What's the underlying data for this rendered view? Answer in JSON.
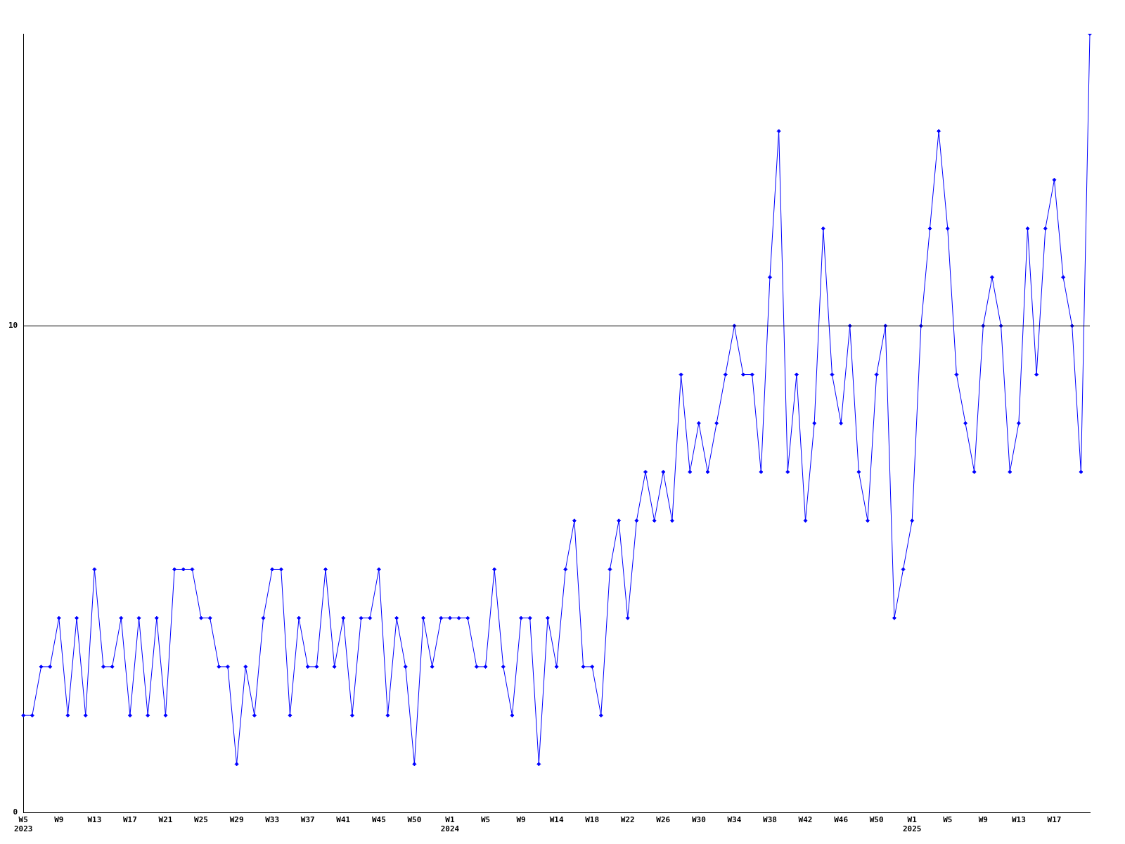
{
  "chart_data": {
    "type": "line",
    "categories": [
      "W5\n2023",
      null,
      null,
      null,
      "W9",
      null,
      null,
      null,
      "W13",
      null,
      null,
      null,
      "W17",
      null,
      null,
      null,
      "W21",
      null,
      null,
      null,
      "W25",
      null,
      null,
      null,
      "W29",
      null,
      null,
      null,
      "W33",
      null,
      null,
      null,
      "W37",
      null,
      null,
      null,
      "W41",
      null,
      null,
      null,
      "W45",
      null,
      null,
      null,
      "W50",
      null,
      null,
      null,
      "W1\n2024",
      null,
      null,
      null,
      "W5",
      null,
      null,
      null,
      "W9",
      null,
      null,
      null,
      "W14",
      null,
      null,
      null,
      "W18",
      null,
      null,
      null,
      "W22",
      null,
      null,
      null,
      "W26",
      null,
      null,
      null,
      "W30",
      null,
      null,
      null,
      "W34",
      null,
      null,
      null,
      "W38",
      null,
      null,
      null,
      "W42",
      null,
      null,
      null,
      "W46",
      null,
      null,
      null,
      "W50",
      null,
      null,
      null,
      "W1\n2025",
      null,
      null,
      null,
      "W5",
      null,
      null,
      null,
      "W9",
      null,
      null,
      null,
      "W13",
      null,
      null,
      null,
      "W17",
      null,
      null,
      null,
      null
    ],
    "series": [
      {
        "color": "#0000ff",
        "values": [
          2,
          2,
          3,
          3,
          4,
          2,
          4,
          2,
          5,
          3,
          3,
          4,
          2,
          4,
          2,
          4,
          2,
          5,
          5,
          5,
          4,
          4,
          3,
          3,
          1,
          3,
          2,
          4,
          5,
          5,
          2,
          4,
          3,
          3,
          5,
          3,
          4,
          2,
          4,
          4,
          5,
          2,
          4,
          3,
          1,
          4,
          3,
          4,
          4,
          4,
          4,
          3,
          3,
          5,
          3,
          2,
          4,
          4,
          1,
          4,
          3,
          5,
          6,
          3,
          3,
          2,
          5,
          6,
          4,
          6,
          7,
          6,
          7,
          6,
          9,
          7,
          8,
          7,
          8,
          9,
          10,
          9,
          9,
          7,
          11,
          14,
          7,
          9,
          6,
          8,
          12,
          9,
          8,
          10,
          7,
          6,
          9,
          10,
          4,
          5,
          6,
          10,
          12,
          14,
          12,
          9,
          8,
          7,
          10,
          11,
          10,
          7,
          8,
          12,
          9,
          12,
          13,
          11,
          10,
          7,
          16
        ]
      }
    ],
    "ylim": [
      0,
      16
    ],
    "yticks": [
      0,
      10
    ],
    "ref_lines": [
      {
        "axis": "y",
        "value": 10,
        "color": "#000000"
      }
    ],
    "marker": "diamond",
    "line_style": "solid",
    "grid": false,
    "legend": false
  }
}
